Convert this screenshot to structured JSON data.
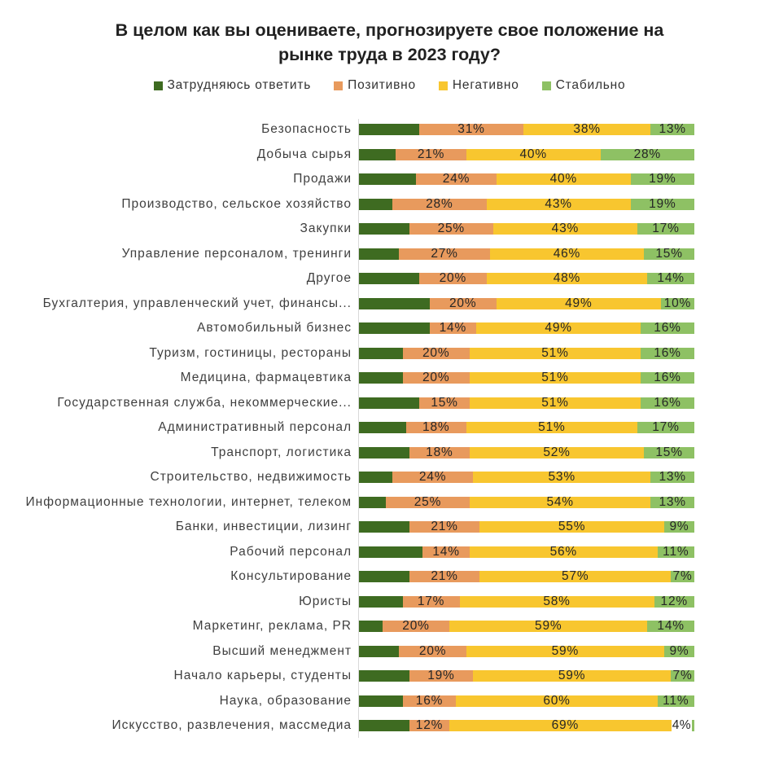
{
  "title": "В целом как вы оцениваете, прогнозируете свое положение на рынке труда в 2023 году?",
  "chart_data": {
    "type": "bar",
    "orientation": "horizontal",
    "stacked": true,
    "unit": "%",
    "xlim": [
      0,
      100
    ],
    "grid": false,
    "legend_position": "top",
    "series": [
      {
        "name": "Затрудняюсь ответить",
        "color": "#3e6b21",
        "labels_visible": false
      },
      {
        "name": "Позитивно",
        "color": "#e89a5d",
        "labels_visible": true
      },
      {
        "name": "Негативно",
        "color": "#f8c62f",
        "labels_visible": true
      },
      {
        "name": "Стабильно",
        "color": "#8ec164",
        "labels_visible": true
      }
    ],
    "rows": [
      {
        "category": "Безопасность",
        "values": [
          18,
          31,
          38,
          13
        ]
      },
      {
        "category": "Добыча сырья",
        "values": [
          11,
          21,
          40,
          28
        ]
      },
      {
        "category": "Продажи",
        "values": [
          17,
          24,
          40,
          19
        ]
      },
      {
        "category": "Производство, сельское хозяйство",
        "values": [
          10,
          28,
          43,
          19
        ]
      },
      {
        "category": "Закупки",
        "values": [
          15,
          25,
          43,
          17
        ]
      },
      {
        "category": "Управление персоналом, тренинги",
        "values": [
          12,
          27,
          46,
          15
        ]
      },
      {
        "category": "Другое",
        "values": [
          18,
          20,
          48,
          14
        ]
      },
      {
        "category": "Бухгалтерия, управленческий учет, финансы...",
        "values": [
          21,
          20,
          49,
          10
        ]
      },
      {
        "category": "Автомобильный бизнес",
        "values": [
          21,
          14,
          49,
          16
        ]
      },
      {
        "category": "Туризм, гостиницы, рестораны",
        "values": [
          13,
          20,
          51,
          16
        ]
      },
      {
        "category": "Медицина, фармацевтика",
        "values": [
          13,
          20,
          51,
          16
        ]
      },
      {
        "category": "Государственная служба, некоммерческие...",
        "values": [
          18,
          15,
          51,
          16
        ]
      },
      {
        "category": "Административный персонал",
        "values": [
          14,
          18,
          51,
          17
        ]
      },
      {
        "category": "Транспорт, логистика",
        "values": [
          15,
          18,
          52,
          15
        ]
      },
      {
        "category": "Строительство, недвижимость",
        "values": [
          10,
          24,
          53,
          13
        ]
      },
      {
        "category": "Информационные технологии, интернет, телеком",
        "values": [
          8,
          25,
          54,
          13
        ]
      },
      {
        "category": "Банки, инвестиции, лизинг",
        "values": [
          15,
          21,
          55,
          9
        ]
      },
      {
        "category": "Рабочий персонал",
        "values": [
          19,
          14,
          56,
          11
        ]
      },
      {
        "category": "Консультирование",
        "values": [
          15,
          21,
          57,
          7
        ]
      },
      {
        "category": "Юристы",
        "values": [
          13,
          17,
          58,
          12
        ]
      },
      {
        "category": "Маркетинг, реклама, PR",
        "values": [
          7,
          20,
          59,
          14
        ]
      },
      {
        "category": "Высший менеджмент",
        "values": [
          12,
          20,
          59,
          9
        ]
      },
      {
        "category": "Начало карьеры, студенты",
        "values": [
          15,
          19,
          59,
          7
        ]
      },
      {
        "category": "Наука, образование",
        "values": [
          13,
          16,
          60,
          11
        ]
      },
      {
        "category": "Искусство, развлечения, массмедиа",
        "values": [
          15,
          12,
          69,
          4
        ]
      }
    ]
  }
}
